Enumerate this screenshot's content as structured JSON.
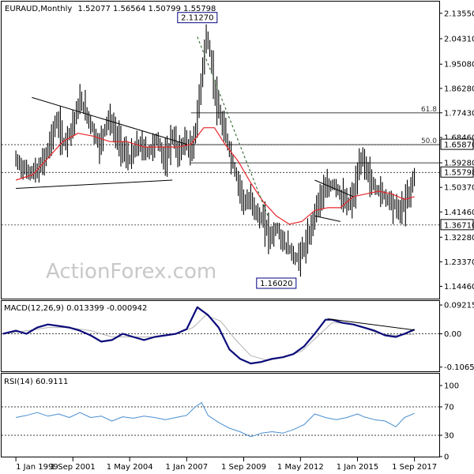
{
  "header": {
    "symbol": "EURAUD,Monthly",
    "ohlc": "1.52077 1.56564 1.50799 1.55798"
  },
  "watermark": "ActionForex.com",
  "colors": {
    "price_bar": "#000000",
    "ma": "#e8262a",
    "macd": "#0b0b7a",
    "signal": "#b4b4b4",
    "rsi": "#4a8fd0",
    "trend": "#000000",
    "dashed_trend": "#1a5a1a"
  },
  "chart_data": [
    {
      "type": "line",
      "panel": "price",
      "ylim": [
        1.1,
        2.175
      ],
      "ytick_labels": [
        "2.13550",
        "2.04310",
        "1.95080",
        "1.86280",
        "1.77430",
        "1.68460",
        "1.59280",
        "1.50370",
        "1.41460",
        "1.32280",
        "1.23370",
        "1.14460"
      ],
      "ytick_values": [
        2.1355,
        2.0431,
        1.9508,
        1.8628,
        1.7743,
        1.6846,
        1.5928,
        1.5037,
        1.4146,
        1.3228,
        1.2337,
        1.1446
      ],
      "x_tick_labels": [
        "1 Jan 1999",
        "1 Sep 2001",
        "1 May 2004",
        "1 Jan 2007",
        "1 Sep 2009",
        "1 May 2012",
        "1 Jan 2015",
        "1 Sep 2017"
      ],
      "x_tick_years": [
        1999.0,
        2001.67,
        2004.33,
        2007.0,
        2009.67,
        2012.33,
        2015.0,
        2017.67
      ],
      "x_range": [
        1998.33,
        2018.83
      ],
      "price_path": [
        [
          1999.0,
          1.6
        ],
        [
          1999.5,
          1.56
        ],
        [
          2000.0,
          1.56
        ],
        [
          2000.4,
          1.62
        ],
        [
          2000.9,
          1.75
        ],
        [
          2001.2,
          1.66
        ],
        [
          2001.6,
          1.72
        ],
        [
          2002.0,
          1.82
        ],
        [
          2002.4,
          1.75
        ],
        [
          2002.9,
          1.65
        ],
        [
          2003.3,
          1.76
        ],
        [
          2003.8,
          1.67
        ],
        [
          2004.3,
          1.6
        ],
        [
          2004.7,
          1.66
        ],
        [
          2005.2,
          1.63
        ],
        [
          2005.6,
          1.68
        ],
        [
          2006.0,
          1.59
        ],
        [
          2006.3,
          1.7
        ],
        [
          2006.6,
          1.62
        ],
        [
          2006.9,
          1.68
        ],
        [
          2007.2,
          1.62
        ],
        [
          2007.45,
          1.74
        ],
        [
          2007.7,
          1.92
        ],
        [
          2007.9,
          2.06
        ],
        [
          2008.1,
          1.98
        ],
        [
          2008.35,
          1.82
        ],
        [
          2008.6,
          1.74
        ],
        [
          2008.85,
          1.68
        ],
        [
          2009.1,
          1.6
        ],
        [
          2009.4,
          1.52
        ],
        [
          2009.7,
          1.44
        ],
        [
          2010.0,
          1.46
        ],
        [
          2010.3,
          1.4
        ],
        [
          2010.6,
          1.38
        ],
        [
          2010.9,
          1.32
        ],
        [
          2011.2,
          1.36
        ],
        [
          2011.5,
          1.3
        ],
        [
          2011.8,
          1.28
        ],
        [
          2012.1,
          1.24
        ],
        [
          2012.4,
          1.27
        ],
        [
          2012.7,
          1.32
        ],
        [
          2013.0,
          1.42
        ],
        [
          2013.3,
          1.48
        ],
        [
          2013.6,
          1.5
        ],
        [
          2013.9,
          1.52
        ],
        [
          2014.2,
          1.47
        ],
        [
          2014.5,
          1.44
        ],
        [
          2014.8,
          1.47
        ],
        [
          2015.0,
          1.55
        ],
        [
          2015.2,
          1.62
        ],
        [
          2015.4,
          1.57
        ],
        [
          2015.7,
          1.51
        ],
        [
          2016.0,
          1.49
        ],
        [
          2016.3,
          1.47
        ],
        [
          2016.6,
          1.45
        ],
        [
          2016.9,
          1.42
        ],
        [
          2017.1,
          1.43
        ],
        [
          2017.4,
          1.48
        ],
        [
          2017.67,
          1.55798
        ]
      ],
      "ma_path": [
        [
          1999.0,
          1.53
        ],
        [
          1999.8,
          1.55
        ],
        [
          2000.5,
          1.61
        ],
        [
          2001.2,
          1.67
        ],
        [
          2001.9,
          1.7
        ],
        [
          2002.6,
          1.69
        ],
        [
          2003.4,
          1.67
        ],
        [
          2004.2,
          1.67
        ],
        [
          2005.0,
          1.65
        ],
        [
          2005.8,
          1.65
        ],
        [
          2006.6,
          1.65
        ],
        [
          2007.2,
          1.66
        ],
        [
          2007.8,
          1.72
        ],
        [
          2008.3,
          1.72
        ],
        [
          2008.8,
          1.66
        ],
        [
          2009.4,
          1.6
        ],
        [
          2010.0,
          1.52
        ],
        [
          2010.6,
          1.45
        ],
        [
          2011.2,
          1.4
        ],
        [
          2011.8,
          1.37
        ],
        [
          2012.4,
          1.38
        ],
        [
          2013.0,
          1.42
        ],
        [
          2013.6,
          1.43
        ],
        [
          2014.2,
          1.43
        ],
        [
          2014.8,
          1.47
        ],
        [
          2015.4,
          1.48
        ],
        [
          2016.0,
          1.49
        ],
        [
          2016.6,
          1.48
        ],
        [
          2017.2,
          1.46
        ],
        [
          2017.67,
          1.47
        ]
      ],
      "trendlines": [
        {
          "from": [
            1999.0,
            1.5
          ],
          "to": [
            2006.33,
            1.53
          ]
        },
        {
          "from": [
            1999.75,
            1.83
          ],
          "to": [
            2007.0,
            1.66
          ]
        },
        {
          "from": [
            2013.0,
            1.53
          ],
          "to": [
            2014.8,
            1.47
          ]
        },
        {
          "from": [
            2013.0,
            1.4
          ],
          "to": [
            2014.2,
            1.38
          ]
        }
      ],
      "dashed_trendline": {
        "from": [
          2007.5,
          2.05
        ],
        "to": [
          2010.8,
          1.4
        ]
      },
      "levels": [
        {
          "label": "61.8",
          "value": 1.774,
          "from_year": 2007.2
        },
        {
          "label": "50.0",
          "value": 1.6587,
          "from_year": 2007.2
        },
        {
          "label": "",
          "value": 1.5928,
          "from_year": 2007.2
        }
      ],
      "level_boxes": [
        {
          "label": "1.65870",
          "value": 1.6587
        },
        {
          "label": "1.55798",
          "value": 1.55798
        },
        {
          "label": "1.36710",
          "value": 1.3671
        }
      ],
      "callouts": [
        {
          "label": "2.11270",
          "x": 2007.5,
          "value": 2.1127
        },
        {
          "label": "1.16020",
          "x": 2011.2,
          "value": 1.1602
        }
      ]
    },
    {
      "type": "line",
      "panel": "macd",
      "title": "MACD(12,26,9) 0.013399 -0.000942",
      "ylim": [
        -0.12,
        0.105
      ],
      "ytick_labels": [
        "0.092158",
        "0.00",
        "-0.106503"
      ],
      "ytick_values": [
        0.092158,
        0.0,
        -0.106503
      ],
      "macd_path": [
        [
          1998.4,
          0.0
        ],
        [
          1999.0,
          0.01
        ],
        [
          1999.5,
          0.0
        ],
        [
          2000.0,
          0.02
        ],
        [
          2000.5,
          0.03
        ],
        [
          2001.0,
          0.025
        ],
        [
          2001.5,
          0.02
        ],
        [
          2002.0,
          0.01
        ],
        [
          2002.5,
          -0.005
        ],
        [
          2003.0,
          -0.025
        ],
        [
          2003.5,
          -0.02
        ],
        [
          2004.0,
          0.0
        ],
        [
          2004.5,
          -0.01
        ],
        [
          2005.0,
          -0.02
        ],
        [
          2005.5,
          -0.01
        ],
        [
          2006.0,
          -0.005
        ],
        [
          2006.5,
          0.0
        ],
        [
          2007.0,
          0.015
        ],
        [
          2007.5,
          0.085
        ],
        [
          2008.0,
          0.06
        ],
        [
          2008.5,
          0.02
        ],
        [
          2009.0,
          -0.05
        ],
        [
          2009.5,
          -0.08
        ],
        [
          2010.0,
          -0.095
        ],
        [
          2010.5,
          -0.09
        ],
        [
          2011.0,
          -0.08
        ],
        [
          2011.5,
          -0.075
        ],
        [
          2012.0,
          -0.065
        ],
        [
          2012.5,
          -0.04
        ],
        [
          2013.0,
          0.0
        ],
        [
          2013.5,
          0.045
        ],
        [
          2013.8,
          0.045
        ],
        [
          2014.3,
          0.035
        ],
        [
          2014.8,
          0.03
        ],
        [
          2015.3,
          0.02
        ],
        [
          2015.8,
          0.01
        ],
        [
          2016.3,
          -0.005
        ],
        [
          2016.8,
          -0.01
        ],
        [
          2017.2,
          0.0
        ],
        [
          2017.67,
          0.013399
        ]
      ],
      "signal_path": [
        [
          1998.4,
          0.0
        ],
        [
          1999.5,
          0.01
        ],
        [
          2000.5,
          0.02
        ],
        [
          2001.5,
          0.02
        ],
        [
          2002.5,
          0.01
        ],
        [
          2003.5,
          -0.01
        ],
        [
          2004.5,
          -0.01
        ],
        [
          2005.5,
          -0.01
        ],
        [
          2006.5,
          0.0
        ],
        [
          2007.3,
          0.02
        ],
        [
          2007.9,
          0.06
        ],
        [
          2008.6,
          0.04
        ],
        [
          2009.3,
          -0.02
        ],
        [
          2010.0,
          -0.07
        ],
        [
          2010.8,
          -0.085
        ],
        [
          2011.6,
          -0.075
        ],
        [
          2012.4,
          -0.055
        ],
        [
          2013.1,
          -0.01
        ],
        [
          2013.8,
          0.035
        ],
        [
          2014.5,
          0.035
        ],
        [
          2015.3,
          0.02
        ],
        [
          2016.0,
          0.0
        ],
        [
          2016.8,
          -0.005
        ],
        [
          2017.67,
          -0.000942
        ]
      ],
      "trendline": {
        "from": [
          2013.6,
          0.048
        ],
        "to": [
          2017.67,
          0.012
        ]
      }
    },
    {
      "type": "line",
      "panel": "rsi",
      "title": "RSI(14) 60.9111",
      "ylim": [
        0,
        100
      ],
      "ytick_labels": [
        "100",
        "70",
        "30",
        "0"
      ],
      "ytick_values": [
        100,
        70,
        30,
        0
      ],
      "levels": [
        70,
        30
      ],
      "rsi_path": [
        [
          1999.0,
          55
        ],
        [
          1999.5,
          58
        ],
        [
          2000.0,
          62
        ],
        [
          2000.5,
          57
        ],
        [
          2001.0,
          60
        ],
        [
          2001.5,
          55
        ],
        [
          2002.0,
          62
        ],
        [
          2002.5,
          55
        ],
        [
          2003.0,
          57
        ],
        [
          2003.5,
          50
        ],
        [
          2004.0,
          56
        ],
        [
          2004.5,
          54
        ],
        [
          2005.0,
          57
        ],
        [
          2005.5,
          55
        ],
        [
          2006.0,
          52
        ],
        [
          2006.5,
          55
        ],
        [
          2007.0,
          58
        ],
        [
          2007.4,
          70
        ],
        [
          2007.7,
          76
        ],
        [
          2008.0,
          58
        ],
        [
          2008.5,
          48
        ],
        [
          2009.0,
          40
        ],
        [
          2009.5,
          35
        ],
        [
          2010.0,
          28
        ],
        [
          2010.5,
          33
        ],
        [
          2011.0,
          35
        ],
        [
          2011.5,
          33
        ],
        [
          2012.0,
          38
        ],
        [
          2012.5,
          45
        ],
        [
          2013.0,
          60
        ],
        [
          2013.5,
          55
        ],
        [
          2014.0,
          52
        ],
        [
          2014.5,
          55
        ],
        [
          2015.0,
          60
        ],
        [
          2015.3,
          56
        ],
        [
          2015.8,
          52
        ],
        [
          2016.3,
          50
        ],
        [
          2016.8,
          42
        ],
        [
          2017.2,
          55
        ],
        [
          2017.67,
          60.9111
        ]
      ]
    }
  ]
}
